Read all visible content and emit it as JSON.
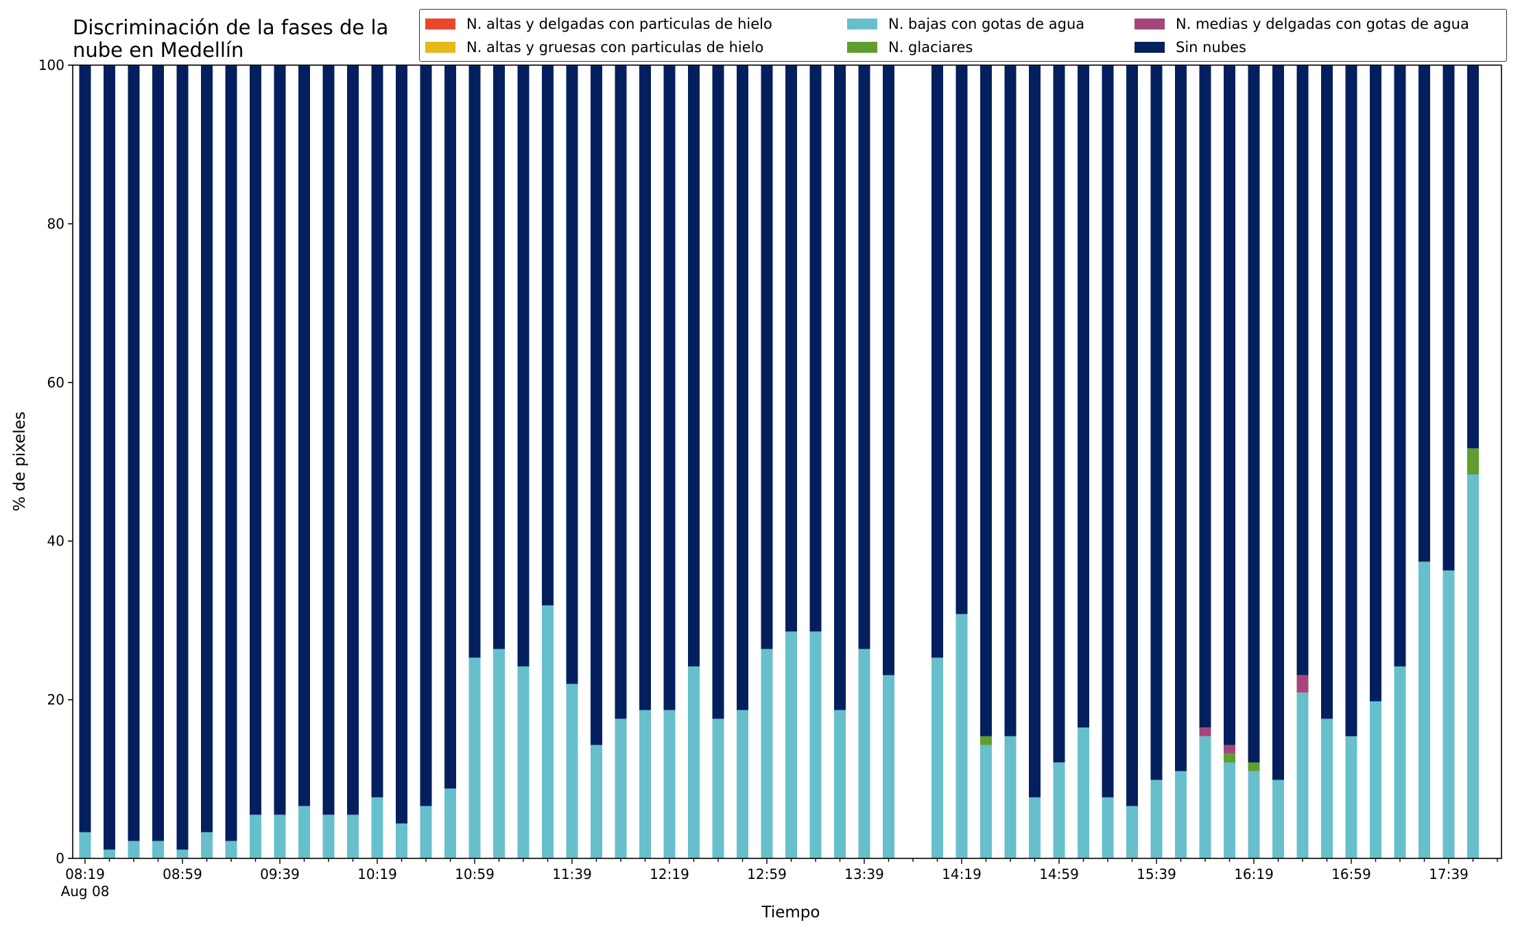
{
  "chart_data": {
    "type": "bar",
    "stacked": true,
    "title": "Discriminación de la fases de la\nnube en Medellín",
    "xlabel": "Tiempo",
    "ylabel": "% de pixeles",
    "ylim": [
      0,
      100
    ],
    "yticks": [
      0,
      20,
      40,
      60,
      80,
      100
    ],
    "x_tick_labels": [
      "08:19",
      "08:59",
      "09:39",
      "10:19",
      "10:59",
      "11:39",
      "12:19",
      "12:59",
      "13:39",
      "14:19",
      "14:59",
      "15:39",
      "16:19",
      "16:59",
      "17:39"
    ],
    "x_tick_sublabel": "Aug 08",
    "legend_position": "top-right",
    "grid": false,
    "categories": [
      "08:19",
      "08:29",
      "08:39",
      "08:49",
      "08:59",
      "09:09",
      "09:19",
      "09:29",
      "09:39",
      "09:49",
      "09:59",
      "10:09",
      "10:19",
      "10:29",
      "10:39",
      "10:49",
      "10:59",
      "11:09",
      "11:19",
      "11:29",
      "11:39",
      "11:49",
      "11:59",
      "12:09",
      "12:19",
      "12:29",
      "12:39",
      "12:49",
      "12:59",
      "13:09",
      "13:19",
      "13:29",
      "13:39",
      "13:49",
      "13:59",
      "14:09",
      "14:19",
      "14:29",
      "14:39",
      "14:49",
      "14:59",
      "15:09",
      "15:19",
      "15:29",
      "15:39",
      "15:49",
      "15:59",
      "16:09",
      "16:19",
      "16:29",
      "16:39",
      "16:49",
      "16:59",
      "17:09",
      "17:19",
      "17:29",
      "17:39",
      "17:49"
    ],
    "series": [
      {
        "name": "N. altas y delgadas con particulas de hielo",
        "color": "#e8472a",
        "values": [
          0,
          0,
          0,
          0,
          0,
          0,
          0,
          0,
          0,
          0,
          0,
          0,
          0,
          0,
          0,
          0,
          0,
          0,
          0,
          0,
          0,
          0,
          0,
          0,
          0,
          0,
          0,
          0,
          0,
          0,
          0,
          0,
          0,
          0,
          0,
          0,
          0,
          0,
          0,
          0,
          0,
          0,
          0,
          0,
          0,
          0,
          0,
          0,
          0,
          0,
          0,
          0,
          0,
          0,
          0,
          0,
          0,
          0
        ]
      },
      {
        "name": "N. altas y gruesas con particulas de hielo",
        "color": "#e5b81b",
        "values": [
          0,
          0,
          0,
          0,
          0,
          0,
          0,
          0,
          0,
          0,
          0,
          0,
          0,
          0,
          0,
          0,
          0,
          0,
          0,
          0,
          0,
          0,
          0,
          0,
          0,
          0,
          0,
          0,
          0,
          0,
          0,
          0,
          0,
          0,
          0,
          0,
          0,
          0,
          0,
          0,
          0,
          0,
          0,
          0,
          0,
          0,
          0,
          0,
          0,
          0,
          0,
          0,
          0,
          0,
          0,
          0,
          0,
          0
        ]
      },
      {
        "name": "N. bajas con gotas de agua",
        "color": "#67bfcb",
        "values": [
          3.3,
          1.1,
          2.2,
          2.2,
          1.1,
          3.3,
          2.2,
          5.5,
          5.5,
          6.6,
          5.5,
          5.5,
          7.7,
          4.4,
          6.6,
          8.8,
          25.3,
          26.4,
          24.2,
          31.9,
          22.0,
          14.3,
          17.6,
          18.7,
          18.7,
          24.2,
          17.6,
          18.7,
          26.4,
          28.6,
          28.6,
          18.7,
          26.4,
          23.1,
          0,
          25.3,
          30.8,
          14.3,
          15.4,
          7.7,
          12.1,
          16.5,
          7.7,
          6.6,
          9.9,
          11.0,
          15.4,
          12.1,
          11.0,
          9.9,
          20.9,
          17.6,
          15.4,
          19.8,
          24.2,
          37.4,
          36.3,
          48.4
        ]
      },
      {
        "name": "N. glaciares",
        "color": "#5f9e2f",
        "values": [
          0,
          0,
          0,
          0,
          0,
          0,
          0,
          0,
          0,
          0,
          0,
          0,
          0,
          0,
          0,
          0,
          0,
          0,
          0,
          0,
          0,
          0,
          0,
          0,
          0,
          0,
          0,
          0,
          0,
          0,
          0,
          0,
          0,
          0,
          0,
          0,
          0,
          1.1,
          0,
          0,
          0,
          0,
          0,
          0,
          0,
          0,
          0,
          1.1,
          1.1,
          0,
          0,
          0,
          0,
          0,
          0,
          0,
          0,
          3.3
        ]
      },
      {
        "name": "N. medias y delgadas con gotas de agua",
        "color": "#a5467a",
        "values": [
          0,
          0,
          0,
          0,
          0,
          0,
          0,
          0,
          0,
          0,
          0,
          0,
          0,
          0,
          0,
          0,
          0,
          0,
          0,
          0,
          0,
          0,
          0,
          0,
          0,
          0,
          0,
          0,
          0,
          0,
          0,
          0,
          0,
          0,
          0,
          0,
          0,
          0,
          0,
          0,
          0,
          0,
          0,
          0,
          0,
          0,
          1.1,
          1.1,
          0,
          0,
          2.2,
          0,
          0,
          0,
          0,
          0,
          0,
          0
        ]
      },
      {
        "name": "Sin nubes",
        "color": "#041f5e",
        "values": [
          96.7,
          98.9,
          97.8,
          97.8,
          98.9,
          96.7,
          97.8,
          94.5,
          94.5,
          93.4,
          94.5,
          94.5,
          92.3,
          95.6,
          93.4,
          91.2,
          74.7,
          73.6,
          75.8,
          68.1,
          78.0,
          85.7,
          82.4,
          81.3,
          81.3,
          75.8,
          82.4,
          81.3,
          73.6,
          71.4,
          71.4,
          81.3,
          73.6,
          76.9,
          0,
          74.7,
          69.2,
          84.6,
          84.6,
          92.3,
          87.9,
          83.5,
          92.3,
          93.4,
          90.1,
          89.0,
          83.5,
          85.7,
          87.9,
          90.1,
          76.9,
          82.4,
          84.6,
          80.2,
          75.8,
          62.6,
          63.7,
          48.3
        ]
      }
    ]
  }
}
